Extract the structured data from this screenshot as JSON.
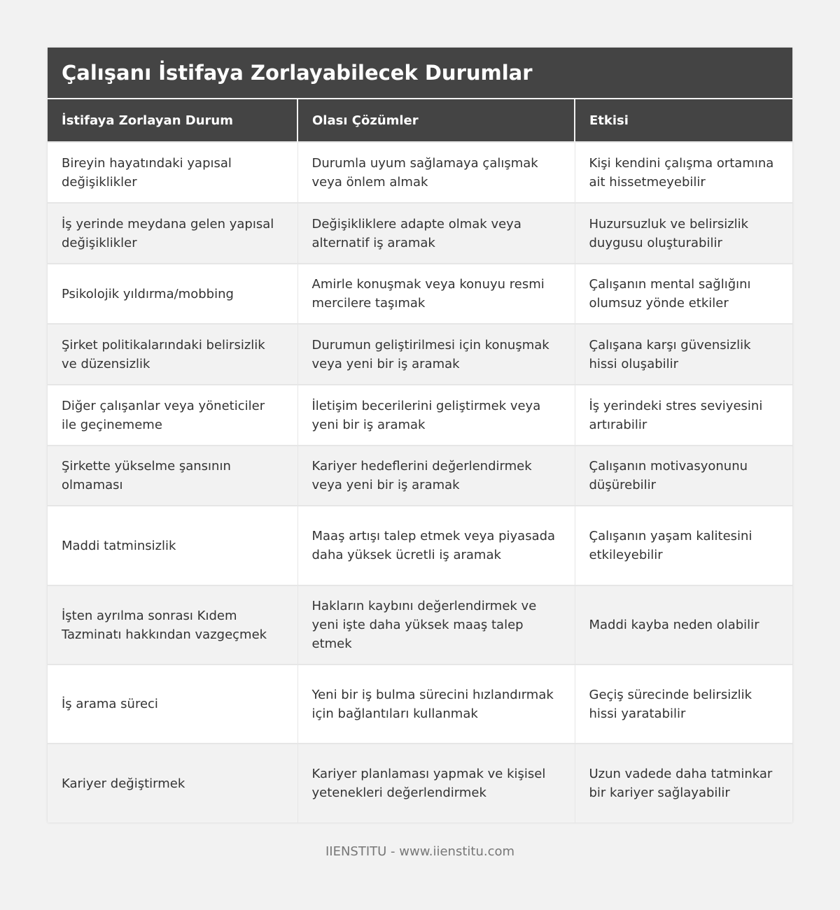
{
  "title": "Çalışanı İstifaya Zorlayabilecek Durumlar",
  "columns": [
    "İstifaya Zorlayan Durum",
    "Olası Çözümler",
    "Etkisi"
  ],
  "rows": [
    [
      "Bireyin hayatındaki yapısal değişiklikler",
      "Durumla uyum sağlamaya çalışmak veya önlem almak",
      "Kişi kendini çalışma ortamına ait hissetmeyebilir"
    ],
    [
      "İş yerinde meydana gelen yapısal değişiklikler",
      "Değişikliklere adapte olmak veya alternatif iş aramak",
      "Huzursuzluk ve belirsizlik duygusu oluşturabilir"
    ],
    [
      "Psikolojik yıldırma/mobbing",
      "Amirle konuşmak veya konuyu resmi mercilere taşımak",
      "Çalışanın mental sağlığını olumsuz yönde etkiler"
    ],
    [
      "Şirket politikalarındaki belirsizlik ve düzensizlik",
      "Durumun geliştirilmesi için konuşmak veya yeni bir iş aramak",
      "Çalışana karşı güvensizlik hissi oluşabilir"
    ],
    [
      "Diğer çalışanlar veya yöneticiler ile geçinememe",
      "İletişim becerilerini geliştirmek veya yeni bir iş aramak",
      "İş yerindeki stres seviyesini artırabilir"
    ],
    [
      "Şirkette yükselme şansının olmaması",
      "Kariyer hedeflerini değerlendirmek veya yeni bir iş aramak",
      "Çalışanın motivasyonunu düşürebilir"
    ],
    [
      "Maddi tatminsizlik",
      "Maaş artışı talep etmek veya piyasada daha yüksek ücretli iş aramak",
      "Çalışanın yaşam kalitesini etkileyebilir"
    ],
    [
      "İşten ayrılma sonrası Kıdem Tazminatı hakkından vazgeçmek",
      "Hakların kaybını değerlendirmek ve yeni işte daha yüksek maaş talep etmek",
      "Maddi kayba neden olabilir"
    ],
    [
      "İş arama süreci",
      "Yeni bir iş bulma sürecini hızlandırmak için bağlantıları kullanmak",
      "Geçiş sürecinde belirsizlik hissi yaratabilir"
    ],
    [
      "Kariyer değiştirmek",
      "Kariyer planlaması yapmak ve kişisel yetenekleri değerlendirmek",
      "Uzun vadede daha tatminkar bir kariyer sağlayabilir"
    ]
  ],
  "footer": "IIENSTITU - www.iienstitu.com"
}
